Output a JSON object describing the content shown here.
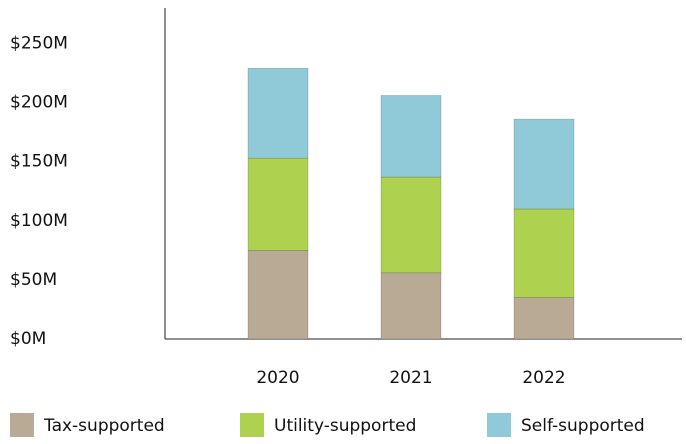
{
  "chart_data": {
    "type": "stacked_bar",
    "categories": [
      "2020",
      "2021",
      "2022"
    ],
    "series": [
      {
        "name": "Tax-supported",
        "color": "#b8aa95",
        "values": [
          75,
          56,
          35
        ]
      },
      {
        "name": "Utility-supported",
        "color": "#aed24f",
        "values": [
          78,
          81,
          75
        ]
      },
      {
        "name": "Self-supported",
        "color": "#90cad8",
        "values": [
          76,
          69,
          76
        ]
      }
    ],
    "ylim": [
      0,
      280
    ],
    "yticks": [
      {
        "value": 0,
        "label": "$0M"
      },
      {
        "value": 50,
        "label": "$50M"
      },
      {
        "value": 100,
        "label": "$100M"
      },
      {
        "value": 150,
        "label": "$150M"
      },
      {
        "value": 200,
        "label": "$200M"
      },
      {
        "value": 250,
        "label": "$250M"
      }
    ]
  }
}
